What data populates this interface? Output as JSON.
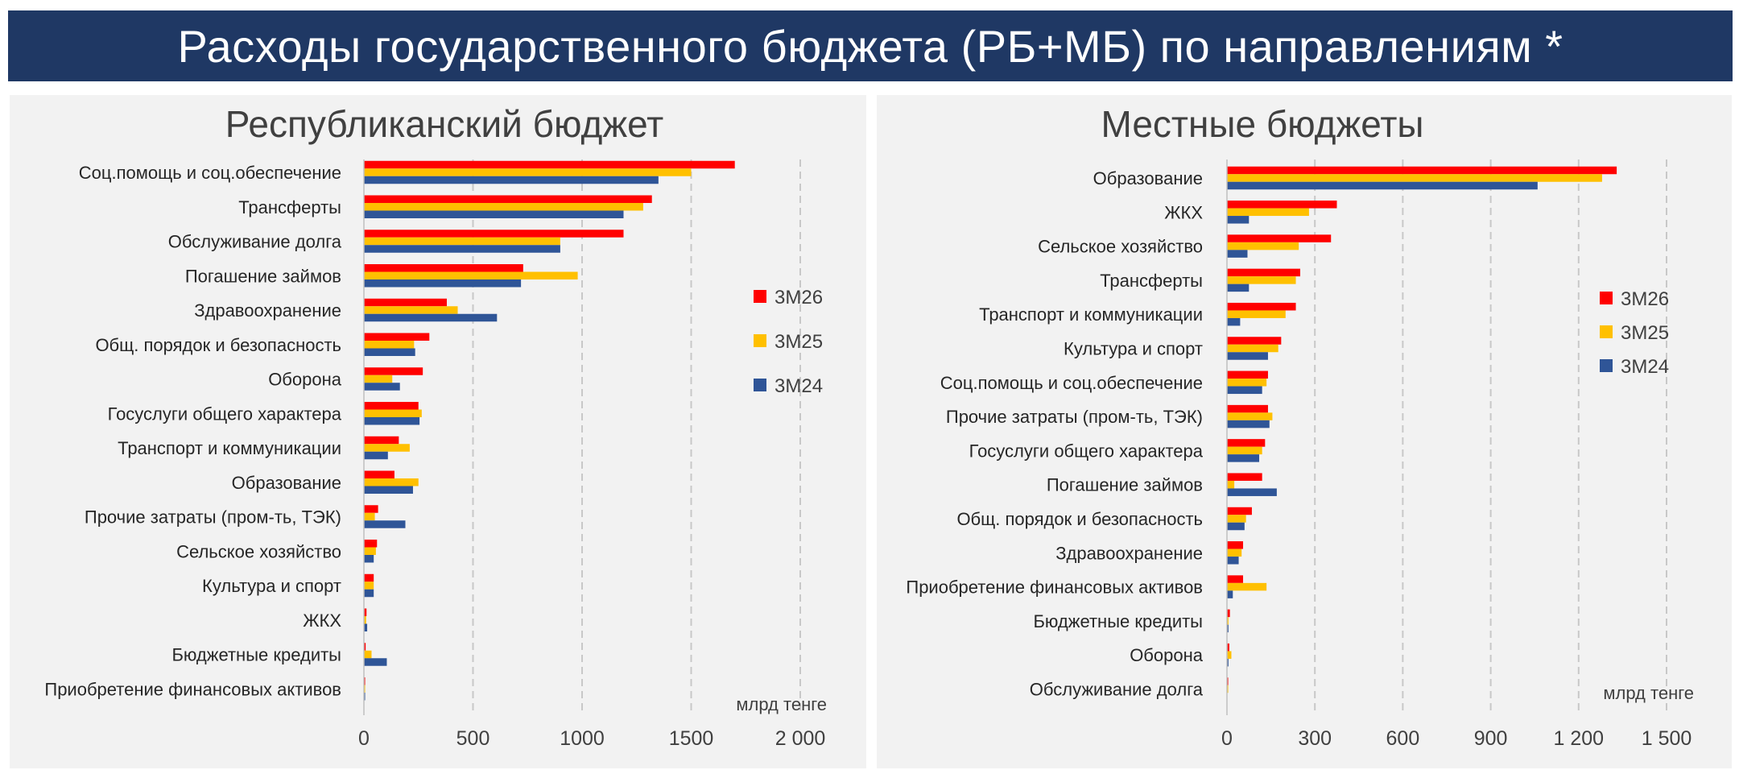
{
  "page_title": "Расходы государственного бюджета (РБ+МБ) по направлениям *",
  "colors": {
    "3M26": "#ff0000",
    "3M25": "#ffc000",
    "3M24": "#2f5597",
    "title_bg": "#1f3864",
    "panel_bg": "#f2f2f2",
    "grid": "#c8c8c8"
  },
  "chart_data": [
    {
      "type": "bar",
      "orientation": "horizontal",
      "title": "Республиканский бюджет",
      "unit_label": "млрд тенге",
      "xlim": [
        0,
        2000
      ],
      "x_ticks": [
        0,
        500,
        1000,
        1500,
        2000
      ],
      "x_tick_labels": [
        "0",
        "500",
        "1000",
        "1500",
        "2 000"
      ],
      "grid": "vertical dashed",
      "legend_position": "right",
      "categories": [
        "Соц.помощь и соц.обеспечение",
        "Трансферты",
        "Обслуживание долга",
        "Погашение займов",
        "Здравоохранение",
        "Общ. порядок и безопасность",
        "Оборона",
        "Госуслуги общего характера",
        "Транспорт и коммуникации",
        "Образование",
        "Прочие затраты (пром-ть, ТЭК)",
        "Сельское хозяйство",
        "Культура и спорт",
        "ЖКХ",
        "Бюджетные кредиты",
        "Приобретение финансовых активов"
      ],
      "series": [
        {
          "name": "3М26",
          "values": [
            1700,
            1320,
            1190,
            730,
            380,
            300,
            270,
            250,
            160,
            140,
            65,
            60,
            45,
            12,
            8,
            2
          ]
        },
        {
          "name": "3М25",
          "values": [
            1500,
            1280,
            900,
            980,
            430,
            230,
            130,
            265,
            210,
            250,
            50,
            55,
            45,
            10,
            35,
            2
          ]
        },
        {
          "name": "3М24",
          "values": [
            1350,
            1190,
            900,
            720,
            610,
            235,
            165,
            255,
            110,
            225,
            190,
            45,
            45,
            15,
            105,
            1
          ]
        }
      ]
    },
    {
      "type": "bar",
      "orientation": "horizontal",
      "title": "Местные бюджеты",
      "unit_label": "млрд тенге",
      "xlim": [
        0,
        1500
      ],
      "x_ticks": [
        0,
        300,
        600,
        900,
        1200,
        1500
      ],
      "x_tick_labels": [
        "0",
        "300",
        "600",
        "900",
        "1 200",
        "1 500"
      ],
      "grid": "vertical dashed",
      "legend_position": "right",
      "categories": [
        "Образование",
        "ЖКХ",
        "Сельское хозяйство",
        "Трансферты",
        "Транспорт и коммуникации",
        "Культура и спорт",
        "Соц.помощь и соц.обеспечение",
        "Прочие затраты (пром-ть, ТЭК)",
        "Госуслуги общего характера",
        "Погашение займов",
        "Общ. порядок и безопасность",
        "Здравоохранение",
        "Приобретение финансовых активов",
        "Бюджетные кредиты",
        "Оборона",
        "Обслуживание долга"
      ],
      "series": [
        {
          "name": "3М26",
          "values": [
            1330,
            375,
            355,
            250,
            235,
            185,
            140,
            140,
            130,
            120,
            85,
            55,
            55,
            10,
            8,
            1
          ]
        },
        {
          "name": "3М25",
          "values": [
            1280,
            280,
            245,
            235,
            200,
            175,
            135,
            155,
            120,
            25,
            65,
            50,
            135,
            5,
            15,
            1
          ]
        },
        {
          "name": "3М24",
          "values": [
            1060,
            75,
            70,
            75,
            45,
            140,
            120,
            145,
            110,
            170,
            60,
            40,
            20,
            5,
            5,
            0
          ]
        }
      ]
    }
  ]
}
